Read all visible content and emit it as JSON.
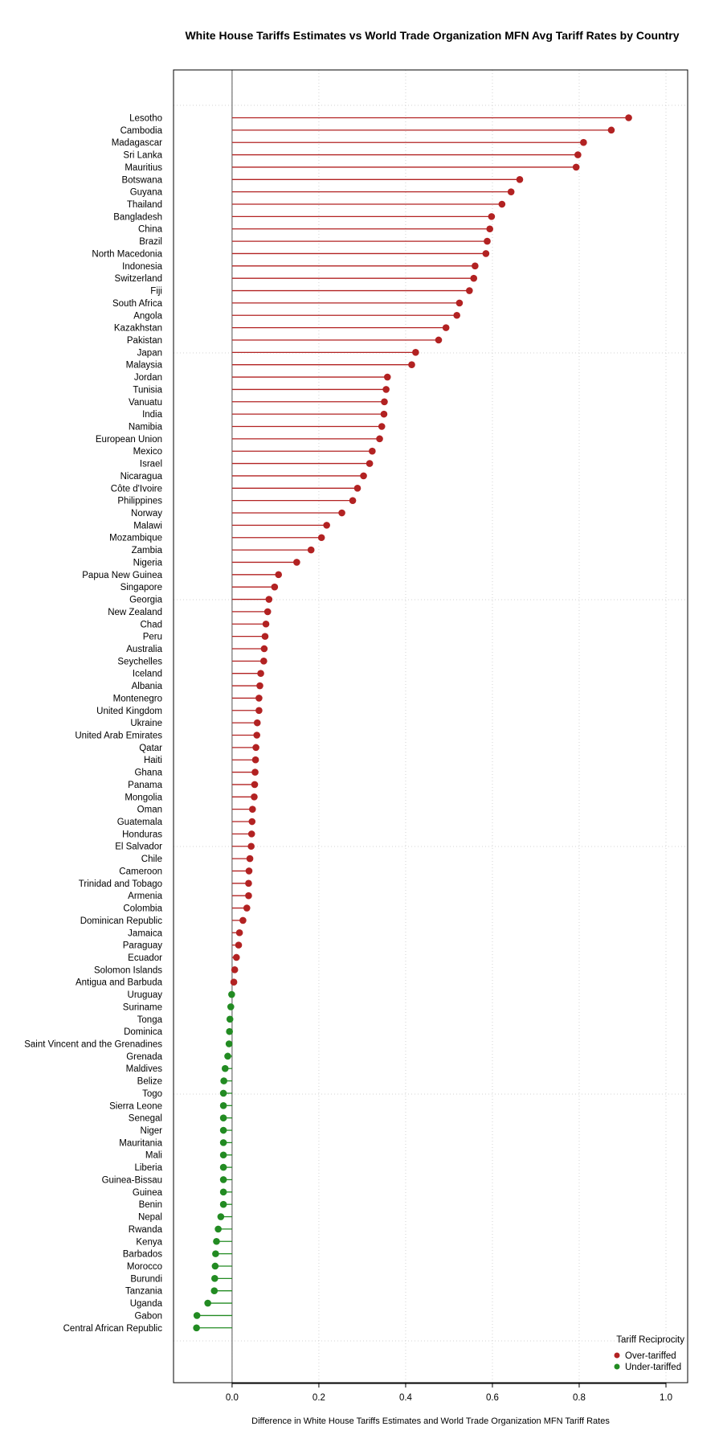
{
  "chart_data": {
    "type": "lollipop",
    "title": "White House Tariffs Estimates vs World Trade Organization MFN Avg Tariff Rates by Country",
    "xlabel": "Difference in White House Tariffs Estimates and World Trade Organization MFN Tariff Rates",
    "ylabel": "",
    "xlim": [
      -0.135,
      1.05
    ],
    "xticks": [
      0.0,
      0.2,
      0.4,
      0.6,
      0.8,
      1.0
    ],
    "xtick_labels": [
      "0.0",
      "0.2",
      "0.4",
      "0.6",
      "0.8",
      "1.0"
    ],
    "grid": true,
    "reference_line": 0,
    "legend": {
      "title": "Tariff Reciprocity",
      "placement": "bottom-right",
      "entries": [
        {
          "label": "Over-tariffed",
          "color": "#b22222"
        },
        {
          "label": "Under-tariffed",
          "color": "#228b22"
        }
      ]
    },
    "colors": {
      "over": "#b22222",
      "under": "#228b22"
    },
    "categories": [
      "Lesotho",
      "Cambodia",
      "Madagascar",
      "Sri Lanka",
      "Mauritius",
      "Botswana",
      "Guyana",
      "Thailand",
      "Bangladesh",
      "China",
      "Brazil",
      "North Macedonia",
      "Indonesia",
      "Switzerland",
      "Fiji",
      "South Africa",
      "Angola",
      "Kazakhstan",
      "Pakistan",
      "Japan",
      "Malaysia",
      "Jordan",
      "Tunisia",
      "Vanuatu",
      "India",
      "Namibia",
      "European Union",
      "Mexico",
      "Israel",
      "Nicaragua",
      "Côte d'Ivoire",
      "Philippines",
      "Norway",
      "Malawi",
      "Mozambique",
      "Zambia",
      "Nigeria",
      "Papua New Guinea",
      "Singapore",
      "Georgia",
      "New Zealand",
      "Chad",
      "Peru",
      "Australia",
      "Seychelles",
      "Iceland",
      "Albania",
      "Montenegro",
      "United Kingdom",
      "Ukraine",
      "United Arab Emirates",
      "Qatar",
      "Haiti",
      "Ghana",
      "Panama",
      "Mongolia",
      "Oman",
      "Guatemala",
      "Honduras",
      "El Salvador",
      "Chile",
      "Cameroon",
      "Trinidad and Tobago",
      "Armenia",
      "Colombia",
      "Dominican Republic",
      "Jamaica",
      "Paraguay",
      "Ecuador",
      "Solomon Islands",
      "Antigua and Barbuda",
      "Uruguay",
      "Suriname",
      "Tonga",
      "Dominica",
      "Saint Vincent and the Grenadines",
      "Grenada",
      "Maldives",
      "Belize",
      "Togo",
      "Sierra Leone",
      "Senegal",
      "Niger",
      "Mauritania",
      "Mali",
      "Liberia",
      "Guinea-Bissau",
      "Guinea",
      "Benin",
      "Nepal",
      "Rwanda",
      "Kenya",
      "Barbados",
      "Morocco",
      "Burundi",
      "Tanzania",
      "Uganda",
      "Gabon",
      "Central African Republic"
    ],
    "values": [
      0.914,
      0.874,
      0.81,
      0.797,
      0.793,
      0.663,
      0.643,
      0.622,
      0.598,
      0.594,
      0.588,
      0.585,
      0.56,
      0.557,
      0.547,
      0.524,
      0.518,
      0.493,
      0.476,
      0.423,
      0.414,
      0.358,
      0.355,
      0.351,
      0.35,
      0.345,
      0.34,
      0.323,
      0.317,
      0.303,
      0.289,
      0.278,
      0.253,
      0.218,
      0.206,
      0.182,
      0.149,
      0.107,
      0.098,
      0.085,
      0.082,
      0.078,
      0.076,
      0.074,
      0.073,
      0.066,
      0.064,
      0.062,
      0.062,
      0.058,
      0.057,
      0.055,
      0.054,
      0.053,
      0.052,
      0.051,
      0.047,
      0.046,
      0.045,
      0.044,
      0.041,
      0.039,
      0.038,
      0.038,
      0.034,
      0.025,
      0.017,
      0.015,
      0.01,
      0.006,
      0.004,
      -0.001,
      -0.003,
      -0.005,
      -0.006,
      -0.007,
      -0.01,
      -0.016,
      -0.019,
      -0.02,
      -0.02,
      -0.02,
      -0.02,
      -0.02,
      -0.02,
      -0.02,
      -0.02,
      -0.02,
      -0.02,
      -0.026,
      -0.032,
      -0.036,
      -0.038,
      -0.039,
      -0.04,
      -0.041,
      -0.056,
      -0.081,
      -0.082
    ]
  }
}
